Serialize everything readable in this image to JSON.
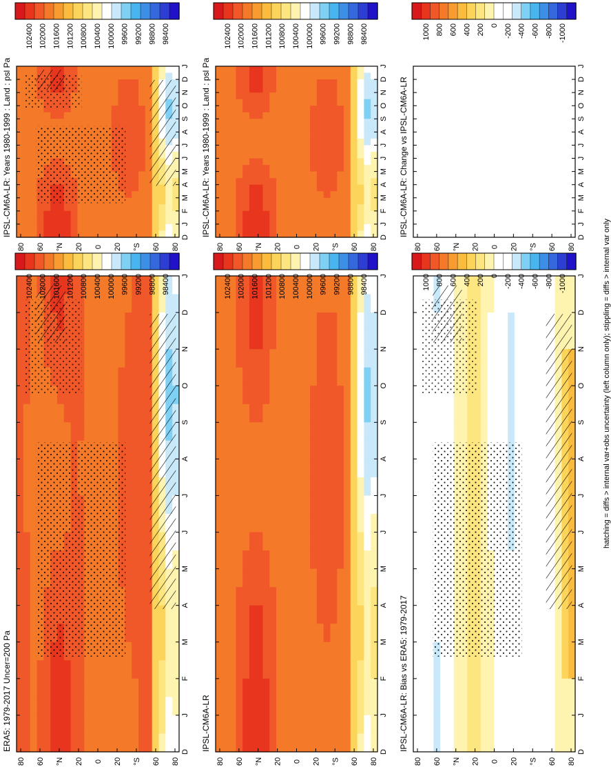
{
  "footer": "hatching = diffs > internal var+obs uncertainty (left column only); stippling = diffs > internal var only",
  "months": [
    "D",
    "J",
    "F",
    "M",
    "A",
    "M",
    "J",
    "J",
    "A",
    "S",
    "O",
    "N",
    "D",
    "J"
  ],
  "lat_labels": [
    "80",
    "60",
    "°N",
    "20",
    "0",
    "20",
    "°S",
    "60",
    "80"
  ],
  "palettes": {
    "psl": [
      "#d7191c",
      "#e8361e",
      "#f0582a",
      "#f47a2a",
      "#f89b30",
      "#fbbb3d",
      "#fcd45a",
      "#fde680",
      "#fff3b0",
      "#ffffff",
      "#c9e9fa",
      "#7fd0f5",
      "#48b5ee",
      "#3d8fe6",
      "#3567dd",
      "#2d3ed3",
      "#1f12c9"
    ],
    "diff": [
      "#d7191c",
      "#e8361e",
      "#f0582a",
      "#f47a2a",
      "#f89b30",
      "#fbbb3d",
      "#fcd45a",
      "#fde680",
      "#fff3b0",
      "#ffffff",
      "#ffffff",
      "#c9e9fa",
      "#7fd0f5",
      "#48b5ee",
      "#3d8fe6",
      "#3567dd",
      "#2d3ed3",
      "#1f12c9"
    ]
  },
  "chart_data": [
    {
      "type": "heatmap",
      "title": "IPSL-CM6A-LR: Years 1980-1999 : Land : psl Pa",
      "x": "month",
      "y": "latitude",
      "colorbar_labels": [
        "102400",
        "102000",
        "101600",
        "101200",
        "100800",
        "100400",
        "100000",
        "99600",
        "99200",
        "98800",
        "98400"
      ],
      "hatching": true,
      "stippling": true
    },
    {
      "type": "heatmap",
      "title": "IPSL-CM6A-LR: Years 1980-1999 : Land : psl Pa",
      "x": "month",
      "y": "latitude",
      "colorbar_labels": [
        "102400",
        "102000",
        "101600",
        "101200",
        "100800",
        "100400",
        "100000",
        "99600",
        "99200",
        "98800",
        "98400"
      ]
    },
    {
      "type": "heatmap",
      "title": "ERA5: 1979-2017 Uncer=200 Pa",
      "x": "month",
      "y": "latitude",
      "colorbar_labels": [
        "102400",
        "102000",
        "101600",
        "101200",
        "100800",
        "100400",
        "100000",
        "99600",
        "99200",
        "98800",
        "98400"
      ],
      "hatching": true,
      "stippling": true
    },
    {
      "type": "heatmap",
      "title": "IPSL-CM6A-LR",
      "x": "month",
      "y": "latitude",
      "colorbar_labels": [
        "102400",
        "102000",
        "101600",
        "101200",
        "100800",
        "100400",
        "100000",
        "99600",
        "99200",
        "98800",
        "98400"
      ]
    },
    {
      "type": "heatmap",
      "title": "IPSL-CM6A-LR: Bias vs ERA5: 1979-2017",
      "x": "month",
      "y": "latitude",
      "colorbar_labels": [
        "1000",
        "800",
        "600",
        "400",
        "200",
        "0",
        "-200",
        "-400",
        "-600",
        "-800",
        "-1000"
      ],
      "hatching": true,
      "stippling": true
    },
    {
      "type": "heatmap",
      "title": "IPSL-CM6A-LR: Change vs IPSL-CM6A-LR",
      "x": "month",
      "y": "latitude",
      "colorbar_labels": [
        "1000",
        "800",
        "600",
        "400",
        "200",
        "0",
        "-200",
        "-400",
        "-600",
        "-800",
        "-1000"
      ],
      "empty": true
    }
  ]
}
